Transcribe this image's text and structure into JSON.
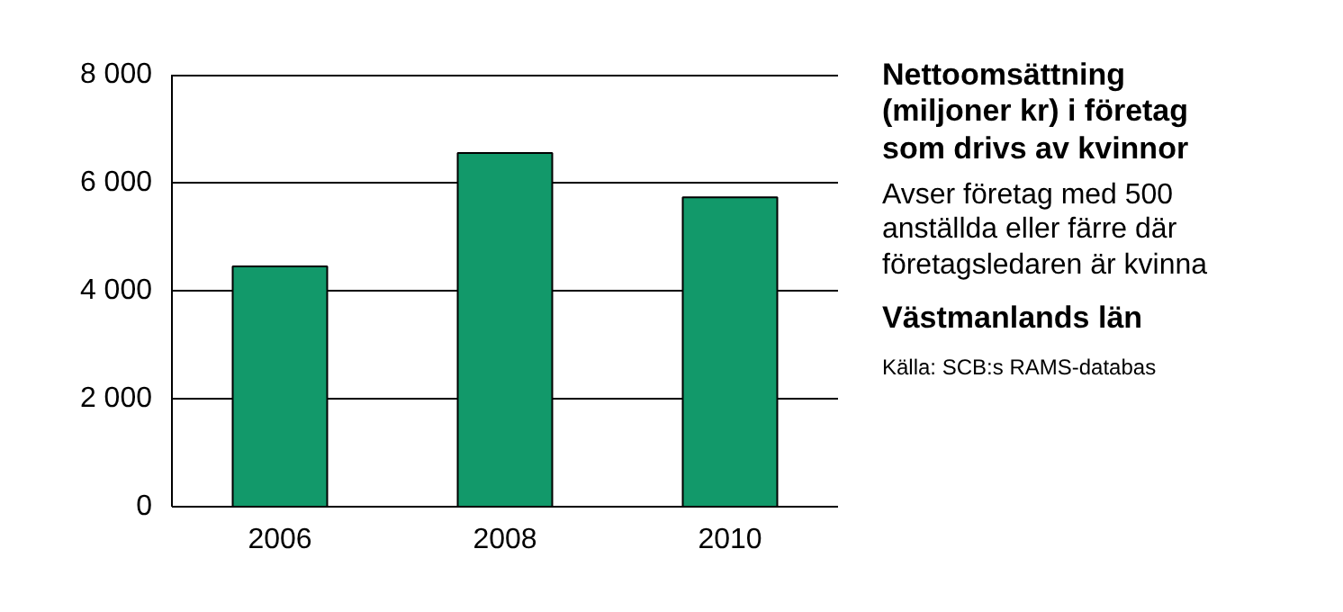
{
  "chart_data": {
    "type": "bar",
    "title": "Nettoomsättning (miljoner kr) i företag som drivs av kvinnor",
    "subtitle": "Avser företag med 500 anställda eller färre där företagsledaren är kvinna",
    "annotations": [
      "Västmanlands län",
      "Källa: SCB:s RAMS-databas"
    ],
    "categories": [
      "2006",
      "2008",
      "2010"
    ],
    "values": [
      4450,
      6550,
      5730
    ],
    "color": "#12996a",
    "ylim": [
      0,
      8000
    ],
    "yticks": [
      0,
      {
        "value": 2000,
        "label": "2 000"
      },
      {
        "value": 4000,
        "label": "4 000"
      },
      {
        "value": 6000,
        "label": "6 000"
      },
      {
        "value": 8000,
        "label": "8 000"
      }
    ],
    "grid": "y"
  }
}
